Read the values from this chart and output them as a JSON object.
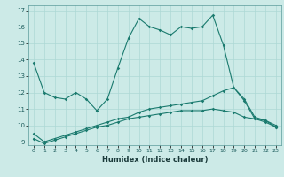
{
  "title": "",
  "xlabel": "Humidex (Indice chaleur)",
  "ylabel": "",
  "xlim": [
    -0.5,
    23.5
  ],
  "ylim": [
    8.8,
    17.3
  ],
  "yticks": [
    9,
    10,
    11,
    12,
    13,
    14,
    15,
    16,
    17
  ],
  "xticks": [
    0,
    1,
    2,
    3,
    4,
    5,
    6,
    7,
    8,
    9,
    10,
    11,
    12,
    13,
    14,
    15,
    16,
    17,
    18,
    19,
    20,
    21,
    22,
    23
  ],
  "bg_color": "#cceae7",
  "line_color": "#1a7a6e",
  "grid_color": "#add8d5",
  "line1_x": [
    0,
    1,
    2,
    3,
    4,
    5,
    6,
    7,
    8,
    9,
    10,
    11,
    12,
    13,
    14,
    15,
    16,
    17,
    18,
    19,
    20,
    21,
    22,
    23
  ],
  "line1_y": [
    13.8,
    12.0,
    11.7,
    11.6,
    12.0,
    11.6,
    10.9,
    11.6,
    13.5,
    15.3,
    16.5,
    16.0,
    15.8,
    15.5,
    16.0,
    15.9,
    16.0,
    16.7,
    14.9,
    12.3,
    11.5,
    10.4,
    10.3,
    9.9
  ],
  "line2_x": [
    0,
    1,
    2,
    3,
    4,
    5,
    6,
    7,
    8,
    9,
    10,
    11,
    12,
    13,
    14,
    15,
    16,
    17,
    18,
    19,
    20,
    21,
    22,
    23
  ],
  "line2_y": [
    9.5,
    9.0,
    9.2,
    9.4,
    9.6,
    9.8,
    10.0,
    10.2,
    10.4,
    10.5,
    10.8,
    11.0,
    11.1,
    11.2,
    11.3,
    11.4,
    11.5,
    11.8,
    12.1,
    12.3,
    11.6,
    10.5,
    10.3,
    10.0
  ],
  "line3_x": [
    0,
    1,
    2,
    3,
    4,
    5,
    6,
    7,
    8,
    9,
    10,
    11,
    12,
    13,
    14,
    15,
    16,
    17,
    18,
    19,
    20,
    21,
    22,
    23
  ],
  "line3_y": [
    9.2,
    8.9,
    9.1,
    9.3,
    9.5,
    9.7,
    9.9,
    10.0,
    10.2,
    10.4,
    10.5,
    10.6,
    10.7,
    10.8,
    10.9,
    10.9,
    10.9,
    11.0,
    10.9,
    10.8,
    10.5,
    10.4,
    10.2,
    9.9
  ]
}
